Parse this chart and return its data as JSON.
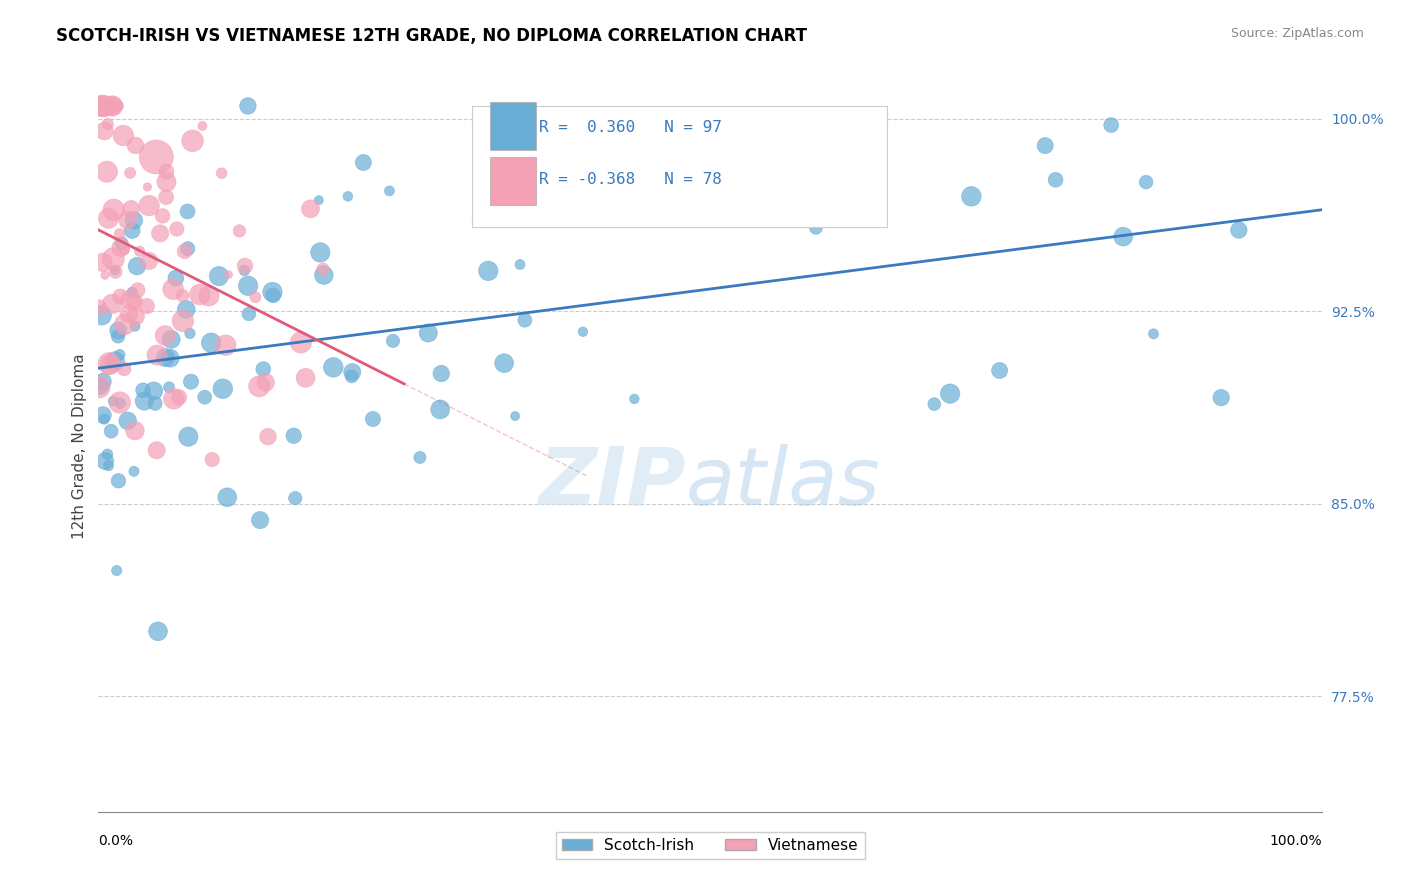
{
  "title": "SCOTCH-IRISH VS VIETNAMESE 12TH GRADE, NO DIPLOMA CORRELATION CHART",
  "source": "Source: ZipAtlas.com",
  "ylabel": "12th Grade, No Diploma",
  "right_yticks": [
    77.5,
    85.0,
    92.5,
    100.0
  ],
  "legend_blue_label": "Scotch-Irish",
  "legend_pink_label": "Vietnamese",
  "R_blue": 0.36,
  "N_blue": 97,
  "R_pink": -0.368,
  "N_pink": 78,
  "blue_color": "#6aaed6",
  "pink_color": "#f4a0b5",
  "blue_line_color": "#3a7abf",
  "pink_line_color": "#e05a7a",
  "xmin": 0.0,
  "xmax": 100.0,
  "ymin": 73.0,
  "ymax": 101.5
}
